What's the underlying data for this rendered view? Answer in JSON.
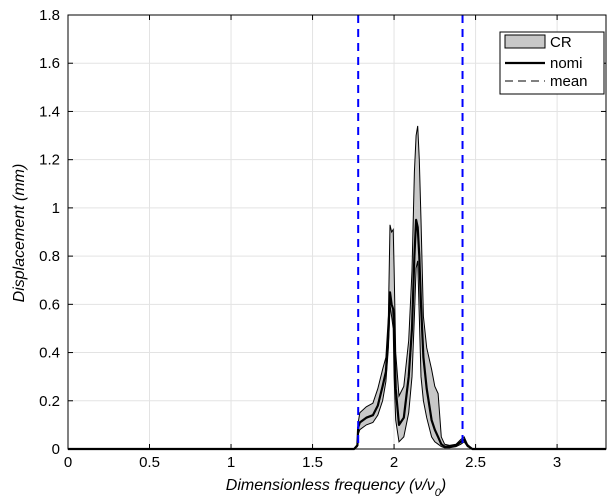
{
  "chart_data": {
    "type": "line",
    "title": "",
    "xlabel": "Dimensionless frequency (ν/ν₀)",
    "xlabel_main": "Dimensionless frequency (ν/ν",
    "xlabel_sub": "0",
    "xlabel_close": ")",
    "ylabel": "Displacement (mm)",
    "xlim": [
      0,
      3.3
    ],
    "ylim": [
      0,
      1.8
    ],
    "xticks": [
      0,
      0.5,
      1,
      1.5,
      2,
      2.5,
      3
    ],
    "yticks": [
      0,
      0.2,
      0.4,
      0.6,
      0.8,
      1,
      1.2,
      1.4,
      1.6,
      1.8
    ],
    "xtick_labels": [
      "0",
      "0.5",
      "1",
      "1.5",
      "2",
      "2.5",
      "3"
    ],
    "ytick_labels": [
      "0",
      "0.2",
      "0.4",
      "0.6",
      "0.8",
      "1",
      "1.2",
      "1.4",
      "1.6",
      "1.8"
    ],
    "grid": true,
    "legend_position": "top-right",
    "legend": [
      {
        "label": "CR",
        "style": "band"
      },
      {
        "label": "nomi",
        "style": "solid"
      },
      {
        "label": "mean",
        "style": "dashed"
      }
    ],
    "colors": {
      "band_fill": "#c8c8c8",
      "line": "#000000",
      "bounds": "#0000ff",
      "grid": "#e3e3e3"
    },
    "vertical_bounds": [
      1.78,
      2.42
    ],
    "cr_band": {
      "x": [
        1.755,
        1.775,
        1.78,
        1.79,
        1.83,
        1.87,
        1.9,
        1.93,
        1.95,
        1.965,
        1.975,
        1.985,
        1.995,
        2.0,
        2.01,
        2.03,
        2.06,
        2.09,
        2.11,
        2.125,
        2.135,
        2.145,
        2.155,
        2.165,
        2.18,
        2.2,
        2.23,
        2.25,
        2.27,
        2.29,
        2.31,
        2.34,
        2.38,
        2.41,
        2.43,
        2.45,
        2.48
      ],
      "upper": [
        0.0,
        0.02,
        0.11,
        0.15,
        0.175,
        0.19,
        0.25,
        0.33,
        0.38,
        0.55,
        0.93,
        0.9,
        0.91,
        0.75,
        0.4,
        0.22,
        0.26,
        0.45,
        0.74,
        1.15,
        1.3,
        1.34,
        1.2,
        0.95,
        0.55,
        0.42,
        0.33,
        0.26,
        0.23,
        0.05,
        0.02,
        0.015,
        0.02,
        0.04,
        0.05,
        0.02,
        0.0
      ],
      "lower": [
        0.0,
        0.01,
        0.06,
        0.08,
        0.1,
        0.11,
        0.14,
        0.2,
        0.28,
        0.42,
        0.6,
        0.55,
        0.5,
        0.3,
        0.12,
        0.03,
        0.05,
        0.15,
        0.3,
        0.55,
        0.75,
        0.78,
        0.55,
        0.3,
        0.2,
        0.13,
        0.05,
        0.03,
        0.02,
        0.01,
        0.005,
        0.005,
        0.01,
        0.02,
        0.03,
        0.01,
        0.0
      ]
    },
    "series": [
      {
        "name": "nomi",
        "x": [
          0,
          1.7,
          1.755,
          1.775,
          1.78,
          1.79,
          1.83,
          1.87,
          1.9,
          1.93,
          1.95,
          1.965,
          1.975,
          1.985,
          1.995,
          2.0,
          2.01,
          2.03,
          2.06,
          2.09,
          2.11,
          2.125,
          2.135,
          2.145,
          2.155,
          2.165,
          2.18,
          2.2,
          2.23,
          2.25,
          2.27,
          2.29,
          2.31,
          2.34,
          2.38,
          2.41,
          2.43,
          2.45,
          2.48,
          2.6,
          3.3
        ],
        "y": [
          0,
          0,
          0.0,
          0.015,
          0.09,
          0.11,
          0.13,
          0.14,
          0.18,
          0.26,
          0.32,
          0.48,
          0.65,
          0.6,
          0.58,
          0.5,
          0.25,
          0.1,
          0.13,
          0.3,
          0.5,
          0.8,
          0.95,
          0.92,
          0.8,
          0.6,
          0.38,
          0.25,
          0.12,
          0.08,
          0.05,
          0.02,
          0.01,
          0.01,
          0.015,
          0.03,
          0.04,
          0.015,
          0.0,
          0,
          0
        ]
      }
    ]
  }
}
